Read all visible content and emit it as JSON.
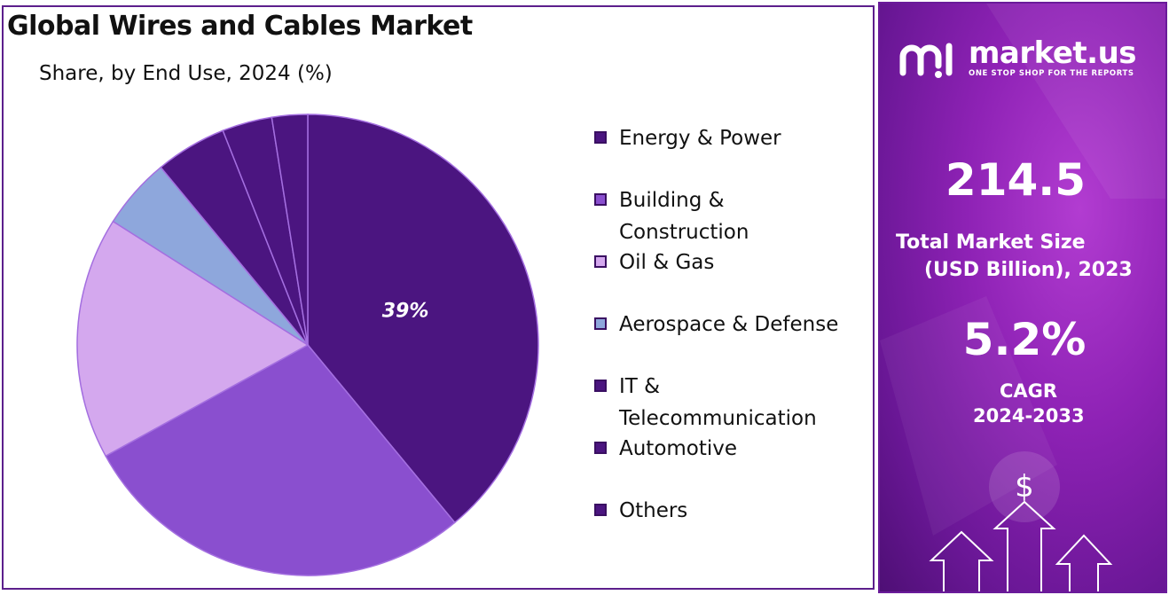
{
  "title": "Global Wires and Cables Market",
  "subtitle": "Share, by End Use, 2024 (%)",
  "chart_data": {
    "type": "pie",
    "title": "Global Wires and Cables Market",
    "subtitle": "Share, by End Use, 2024 (%)",
    "categories": [
      "Energy & Power",
      "Building & Construction",
      "Oil & Gas",
      "Aerospace & Defense",
      "IT & Telecommunication",
      "Automotive",
      "Others"
    ],
    "values": [
      39,
      28,
      17,
      5,
      5,
      3.5,
      2.5
    ],
    "colors": [
      "#4b1580",
      "#8a4fcf",
      "#d4a8ee",
      "#8ea7dc",
      "#4b1580",
      "#4b1580",
      "#4b1580"
    ],
    "data_labels": [
      "39%",
      "",
      "",
      "",
      "",
      "",
      ""
    ],
    "legend_position": "right"
  },
  "legend": [
    {
      "label": "Energy & Power",
      "color": "#4b1580"
    },
    {
      "label": "Building & Construction",
      "color": "#8a4fcf"
    },
    {
      "label": "Oil & Gas",
      "color": "#d4a8ee"
    },
    {
      "label": "Aerospace & Defense",
      "color": "#8ea7dc"
    },
    {
      "label": "IT & Telecommunication",
      "color": "#4b1580"
    },
    {
      "label": "Automotive",
      "color": "#4b1580"
    },
    {
      "label": "Others",
      "color": "#4b1580"
    }
  ],
  "sidebar": {
    "brand": "market.us",
    "tagline": "ONE STOP SHOP FOR THE REPORTS",
    "market_size_value": "214.5",
    "market_size_label_1": "Total Market Size",
    "market_size_label_2": "(USD Billion), 2023",
    "cagr_value": "5.2%",
    "cagr_label_1": "CAGR",
    "cagr_label_2": "2024-2033",
    "currency_symbol": "$"
  }
}
